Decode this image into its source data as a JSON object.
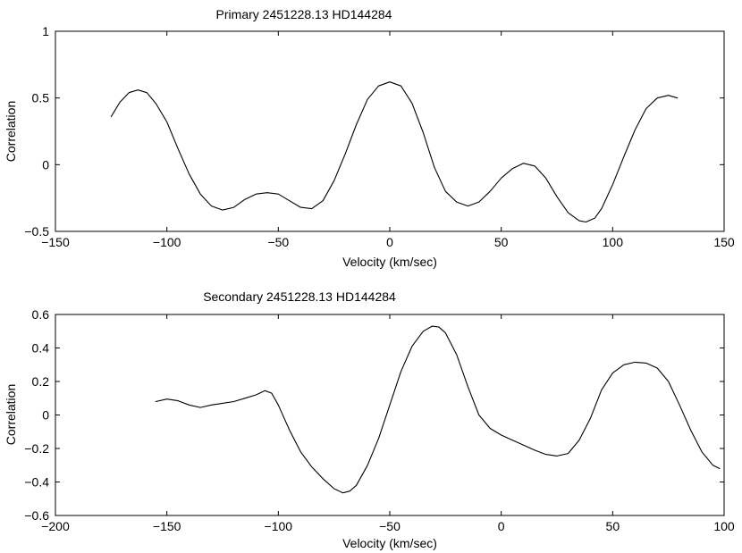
{
  "chart_data": [
    {
      "type": "line",
      "title": "Primary   2451228.13  HD144284",
      "xlabel": "Velocity (km/sec)",
      "ylabel": "Correlation",
      "xlim": [
        -150,
        150
      ],
      "ylim": [
        -0.5,
        1
      ],
      "xticks": [
        -150,
        -100,
        -50,
        0,
        50,
        100,
        150
      ],
      "yticks": [
        -0.5,
        0,
        0.5,
        1
      ],
      "xtick_labels": [
        "−150",
        "−100",
        "−50",
        "0",
        "50",
        "100",
        "150"
      ],
      "ytick_labels": [
        "−0.5",
        "0",
        "0.5",
        "1"
      ],
      "grid": false,
      "series": [
        {
          "x": [
            -125,
            -121,
            -117,
            -113,
            -109,
            -105,
            -100,
            -95,
            -90,
            -85,
            -80,
            -75,
            -70,
            -65,
            -60,
            -55,
            -50,
            -45,
            -40,
            -35,
            -30,
            -25,
            -20,
            -15,
            -10,
            -5,
            0,
            5,
            10,
            15,
            20,
            25,
            30,
            35,
            40,
            45,
            50,
            55,
            60,
            65,
            70,
            75,
            80,
            85,
            88,
            92,
            95,
            100,
            105,
            110,
            115,
            120,
            125,
            129
          ],
          "y": [
            0.36,
            0.47,
            0.54,
            0.56,
            0.54,
            0.46,
            0.32,
            0.12,
            -0.07,
            -0.22,
            -0.31,
            -0.34,
            -0.32,
            -0.26,
            -0.22,
            -0.21,
            -0.22,
            -0.27,
            -0.32,
            -0.33,
            -0.27,
            -0.12,
            0.08,
            0.3,
            0.49,
            0.59,
            0.62,
            0.59,
            0.46,
            0.24,
            -0.02,
            -0.2,
            -0.28,
            -0.31,
            -0.28,
            -0.2,
            -0.1,
            -0.03,
            0.01,
            -0.01,
            -0.1,
            -0.24,
            -0.36,
            -0.42,
            -0.43,
            -0.4,
            -0.33,
            -0.15,
            0.06,
            0.26,
            0.42,
            0.5,
            0.52,
            0.5
          ]
        }
      ]
    },
    {
      "type": "line",
      "title": "Secondary   2451228.13  HD144284",
      "xlabel": "Velocity (km/sec)",
      "ylabel": "Correlation",
      "xlim": [
        -200,
        100
      ],
      "ylim": [
        -0.6,
        0.6
      ],
      "xticks": [
        -200,
        -150,
        -100,
        -50,
        0,
        50,
        100
      ],
      "yticks": [
        -0.6,
        -0.4,
        -0.2,
        0,
        0.2,
        0.4,
        0.6
      ],
      "xtick_labels": [
        "−200",
        "−150",
        "−100",
        "−50",
        "0",
        "50",
        "100"
      ],
      "ytick_labels": [
        "−0.6",
        "−0.4",
        "−0.2",
        "0",
        "0.2",
        "0.4",
        "0.6"
      ],
      "grid": false,
      "series": [
        {
          "x": [
            -155,
            -150,
            -145,
            -140,
            -135,
            -130,
            -125,
            -120,
            -115,
            -110,
            -106,
            -103,
            -100,
            -95,
            -90,
            -85,
            -80,
            -75,
            -71,
            -68,
            -65,
            -60,
            -55,
            -50,
            -45,
            -40,
            -35,
            -31,
            -28,
            -25,
            -20,
            -15,
            -10,
            -5,
            0,
            5,
            10,
            15,
            20,
            25,
            30,
            35,
            40,
            45,
            50,
            55,
            60,
            65,
            70,
            75,
            80,
            85,
            90,
            95,
            98
          ],
          "y": [
            0.08,
            0.095,
            0.085,
            0.06,
            0.045,
            0.06,
            0.07,
            0.08,
            0.1,
            0.12,
            0.145,
            0.13,
            0.06,
            -0.09,
            -0.22,
            -0.31,
            -0.38,
            -0.44,
            -0.465,
            -0.455,
            -0.42,
            -0.3,
            -0.14,
            0.06,
            0.26,
            0.41,
            0.5,
            0.53,
            0.525,
            0.49,
            0.36,
            0.17,
            0.0,
            -0.08,
            -0.12,
            -0.15,
            -0.18,
            -0.21,
            -0.235,
            -0.245,
            -0.23,
            -0.15,
            -0.02,
            0.15,
            0.25,
            0.3,
            0.315,
            0.31,
            0.28,
            0.2,
            0.06,
            -0.09,
            -0.22,
            -0.3,
            -0.32
          ]
        }
      ]
    }
  ]
}
